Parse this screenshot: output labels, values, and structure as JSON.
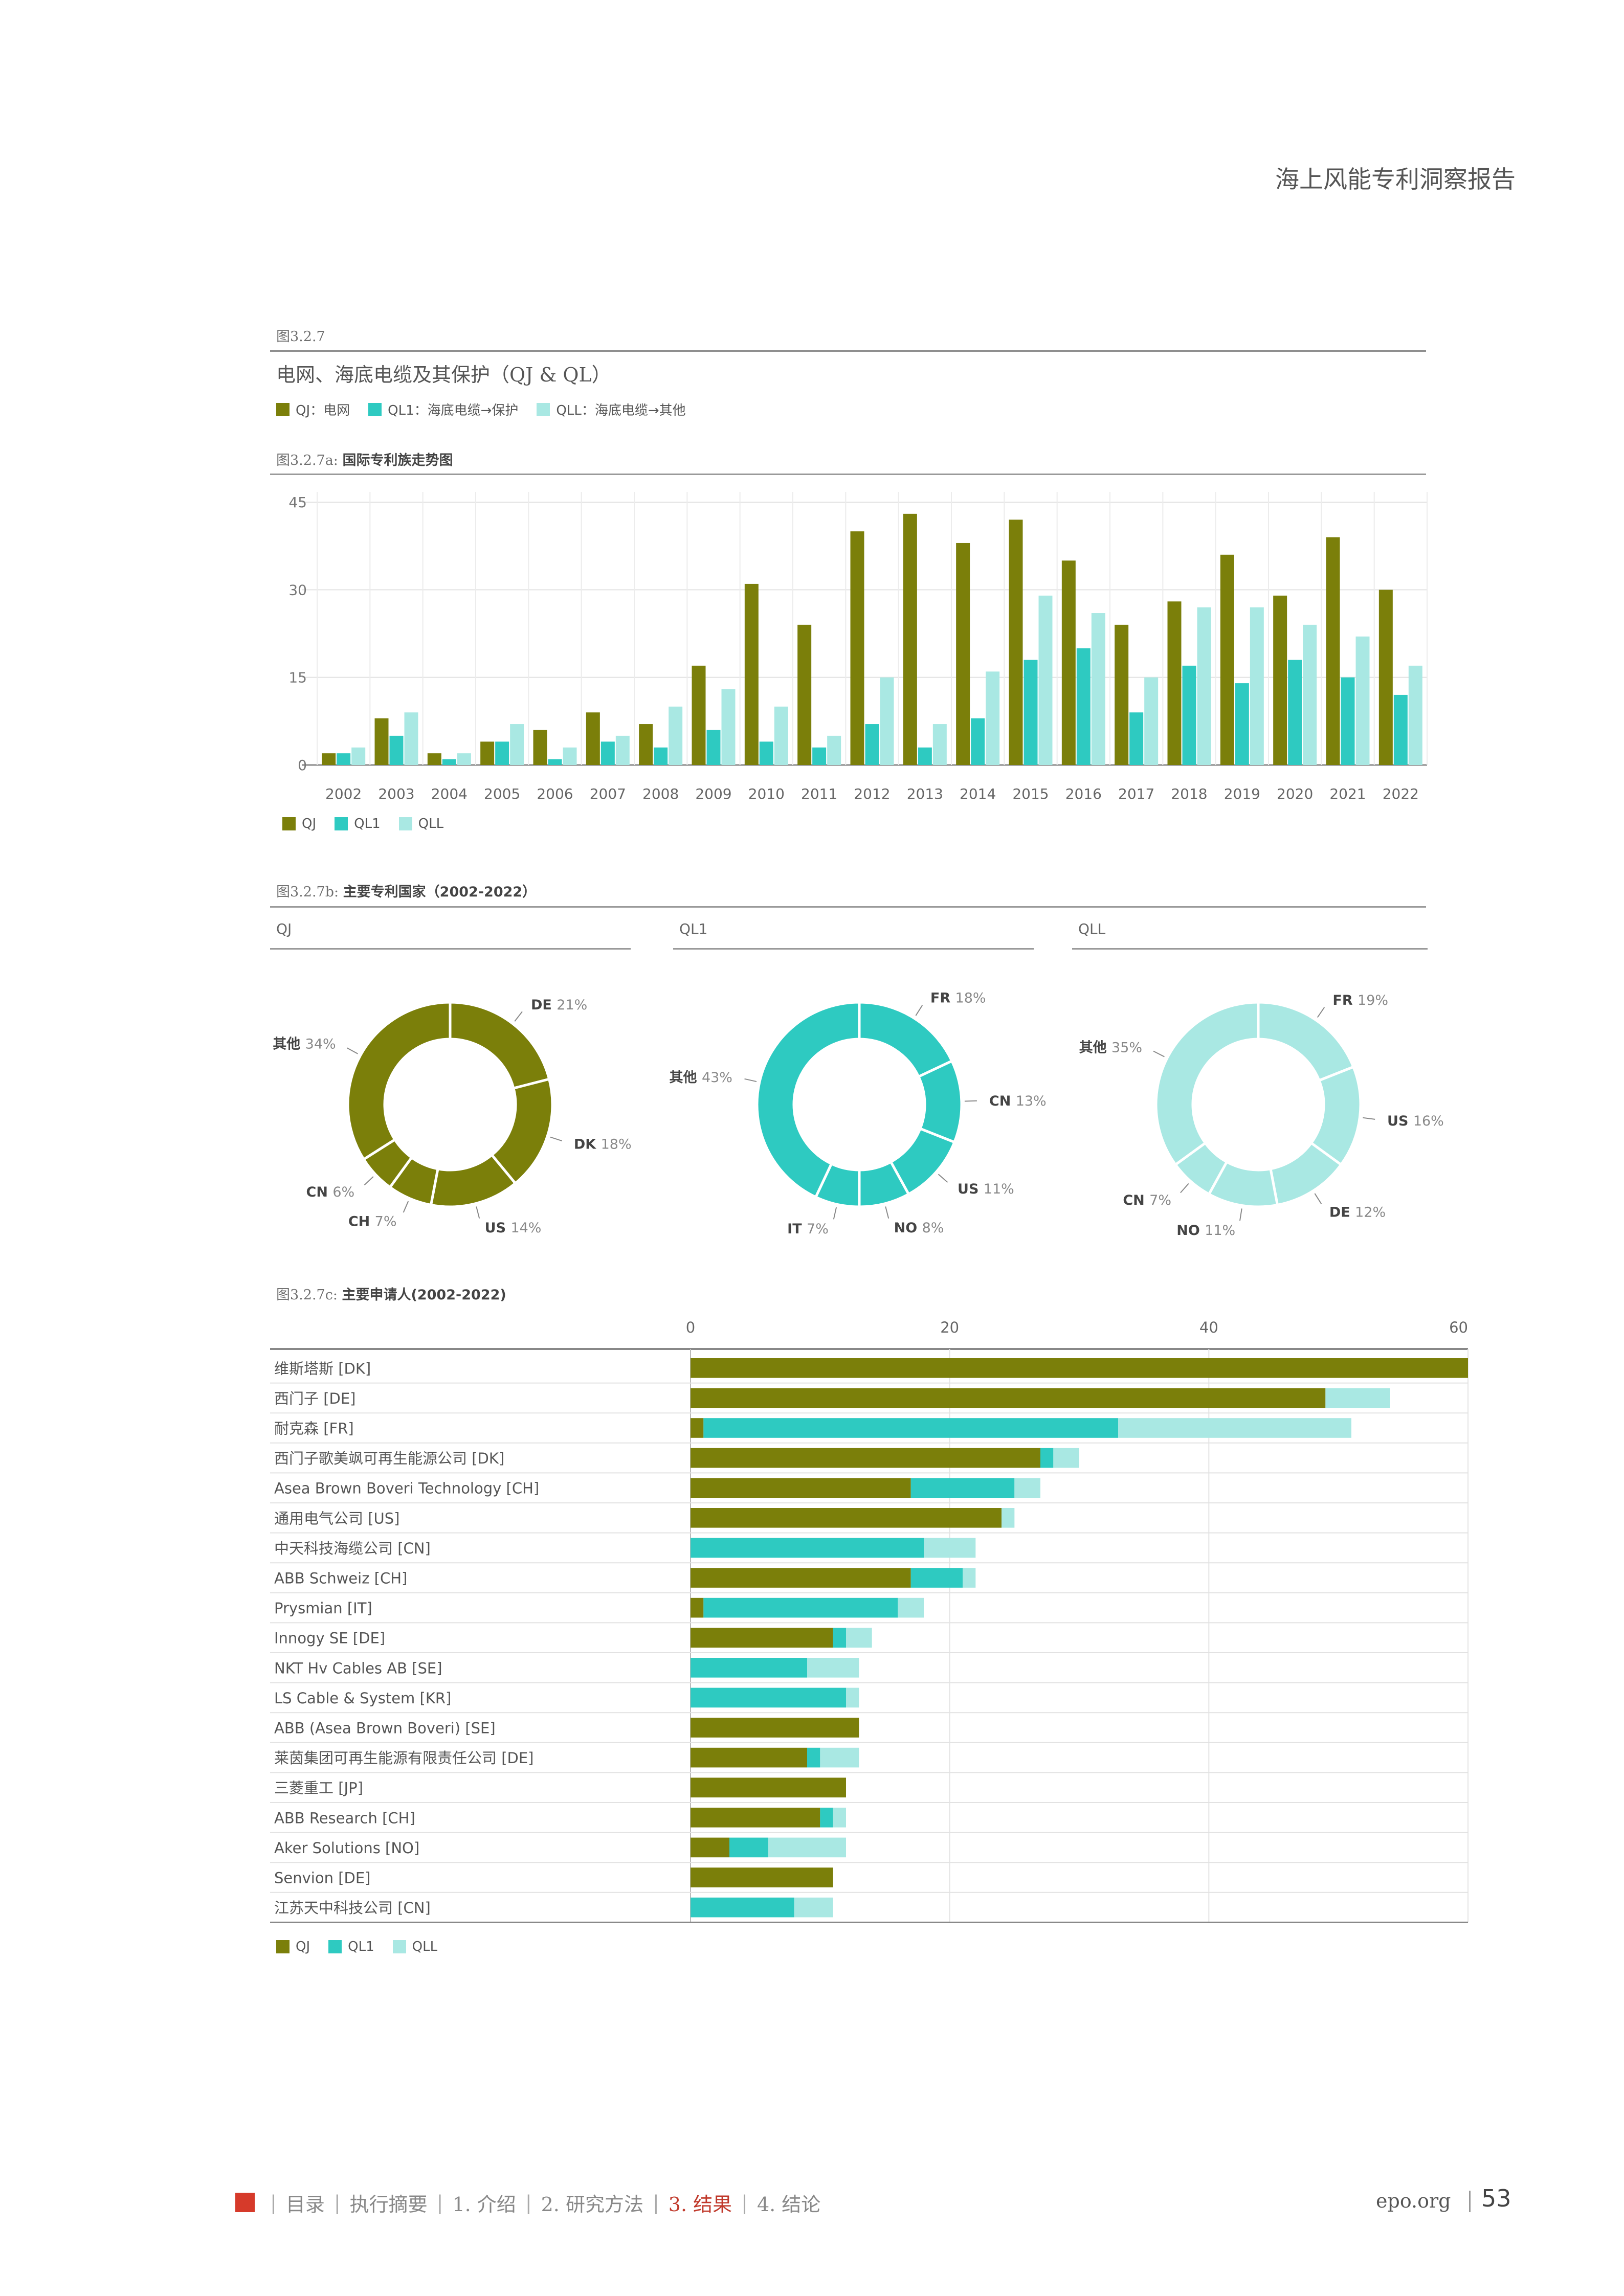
{
  "header": {
    "title": "海上风能专利洞察报告"
  },
  "figure": {
    "label": "图3.2.7",
    "title": "电网、海底电缆及其保护（QJ & QL）",
    "legend_top": [
      {
        "code": "QJ",
        "desc": "电网",
        "color": "#7b7f0a"
      },
      {
        "code": "QL1",
        "desc": "海底电缆→保护",
        "color": "#2ecac1"
      },
      {
        "code": "QLL",
        "desc": "海底电缆→其他",
        "color": "#a9e8e3"
      }
    ]
  },
  "colors": {
    "QJ": "#7b7f0a",
    "QL1": "#2ecac1",
    "QLL": "#a9e8e3"
  },
  "legend_short": [
    "QJ",
    "QL1",
    "QLL"
  ],
  "fig_a": {
    "label": "图3.2.7a:",
    "title": "国际专利族走势图"
  },
  "fig_b": {
    "label": "图3.2.7b:",
    "title": "主要专利国家（2002-2022）"
  },
  "fig_c": {
    "label": "图3.2.7c:",
    "title": "主要申请人(2002-2022)"
  },
  "chart_data": [
    {
      "type": "bar",
      "categories": [
        "2002",
        "2003",
        "2004",
        "2005",
        "2006",
        "2007",
        "2008",
        "2009",
        "2010",
        "2011",
        "2012",
        "2013",
        "2014",
        "2015",
        "2016",
        "2017",
        "2018",
        "2019",
        "2020",
        "2021",
        "2022"
      ],
      "series": [
        {
          "name": "QJ",
          "values": [
            2,
            8,
            2,
            4,
            6,
            9,
            7,
            17,
            31,
            24,
            40,
            43,
            38,
            42,
            35,
            24,
            28,
            36,
            29,
            39,
            30
          ]
        },
        {
          "name": "QL1",
          "values": [
            2,
            5,
            1,
            4,
            1,
            4,
            3,
            6,
            4,
            3,
            7,
            3,
            8,
            18,
            20,
            9,
            17,
            14,
            18,
            15,
            12
          ]
        },
        {
          "name": "QLL",
          "values": [
            3,
            9,
            2,
            7,
            3,
            5,
            10,
            13,
            10,
            5,
            15,
            7,
            16,
            29,
            26,
            15,
            27,
            27,
            24,
            22,
            17
          ]
        }
      ],
      "yticks": [
        0,
        15,
        30,
        45
      ],
      "ylim": [
        0,
        45
      ]
    },
    {
      "type": "pie",
      "title": "QJ",
      "slices": [
        {
          "label": "DE",
          "value": 21
        },
        {
          "label": "DK",
          "value": 18
        },
        {
          "label": "US",
          "value": 14
        },
        {
          "label": "CH",
          "value": 7
        },
        {
          "label": "CN",
          "value": 6
        },
        {
          "label": "其他",
          "value": 34
        }
      ]
    },
    {
      "type": "pie",
      "title": "QL1",
      "slices": [
        {
          "label": "FR",
          "value": 18
        },
        {
          "label": "CN",
          "value": 13
        },
        {
          "label": "US",
          "value": 11
        },
        {
          "label": "NO",
          "value": 8
        },
        {
          "label": "IT",
          "value": 7
        },
        {
          "label": "其他",
          "value": 43
        }
      ]
    },
    {
      "type": "pie",
      "title": "QLL",
      "slices": [
        {
          "label": "FR",
          "value": 19
        },
        {
          "label": "US",
          "value": 16
        },
        {
          "label": "DE",
          "value": 12
        },
        {
          "label": "NO",
          "value": 11
        },
        {
          "label": "CN",
          "value": 7
        },
        {
          "label": "其他",
          "value": 35
        }
      ]
    },
    {
      "type": "bar",
      "orientation": "horizontal",
      "categories": [
        "维斯塔斯 [DK]",
        "西门子 [DE]",
        "耐克森 [FR]",
        "西门子歌美飒可再生能源公司 [DK]",
        "Asea Brown Boveri Technology [CH]",
        "通用电气公司 [US]",
        "中天科技海缆公司 [CN]",
        "ABB Schweiz [CH]",
        "Prysmian [IT]",
        "Innogy SE [DE]",
        "NKT Hv Cables AB [SE]",
        "LS Cable & System [KR]",
        "ABB (Asea Brown Boveri) [SE]",
        "莱茵集团可再生能源有限责任公司 [DE]",
        "三菱重工 [JP]",
        "ABB Research [CH]",
        "Aker Solutions [NO]",
        "Senvion [DE]",
        "江苏天中科技公司 [CN]"
      ],
      "series": [
        {
          "name": "QJ",
          "values": [
            60,
            49,
            1,
            27,
            17,
            24,
            0,
            17,
            1,
            11,
            0,
            0,
            13,
            9,
            12,
            10,
            3,
            11,
            0
          ]
        },
        {
          "name": "QL1",
          "values": [
            0,
            0,
            32,
            1,
            8,
            0,
            18,
            4,
            15,
            1,
            9,
            12,
            0,
            1,
            0,
            1,
            3,
            0,
            8
          ]
        },
        {
          "name": "QLL",
          "values": [
            0,
            5,
            18,
            2,
            2,
            1,
            4,
            1,
            2,
            2,
            4,
            1,
            0,
            3,
            0,
            1,
            6,
            0,
            3
          ]
        }
      ],
      "xticks": [
        0,
        20,
        40,
        60
      ],
      "xlim": [
        0,
        60
      ]
    }
  ],
  "footer": {
    "items": [
      "目录",
      "执行摘要",
      "1. 介绍",
      "2. 研究方法",
      "3. 结果",
      "4. 结论"
    ],
    "active_index": 4,
    "site": "epo.org",
    "page": "53"
  }
}
